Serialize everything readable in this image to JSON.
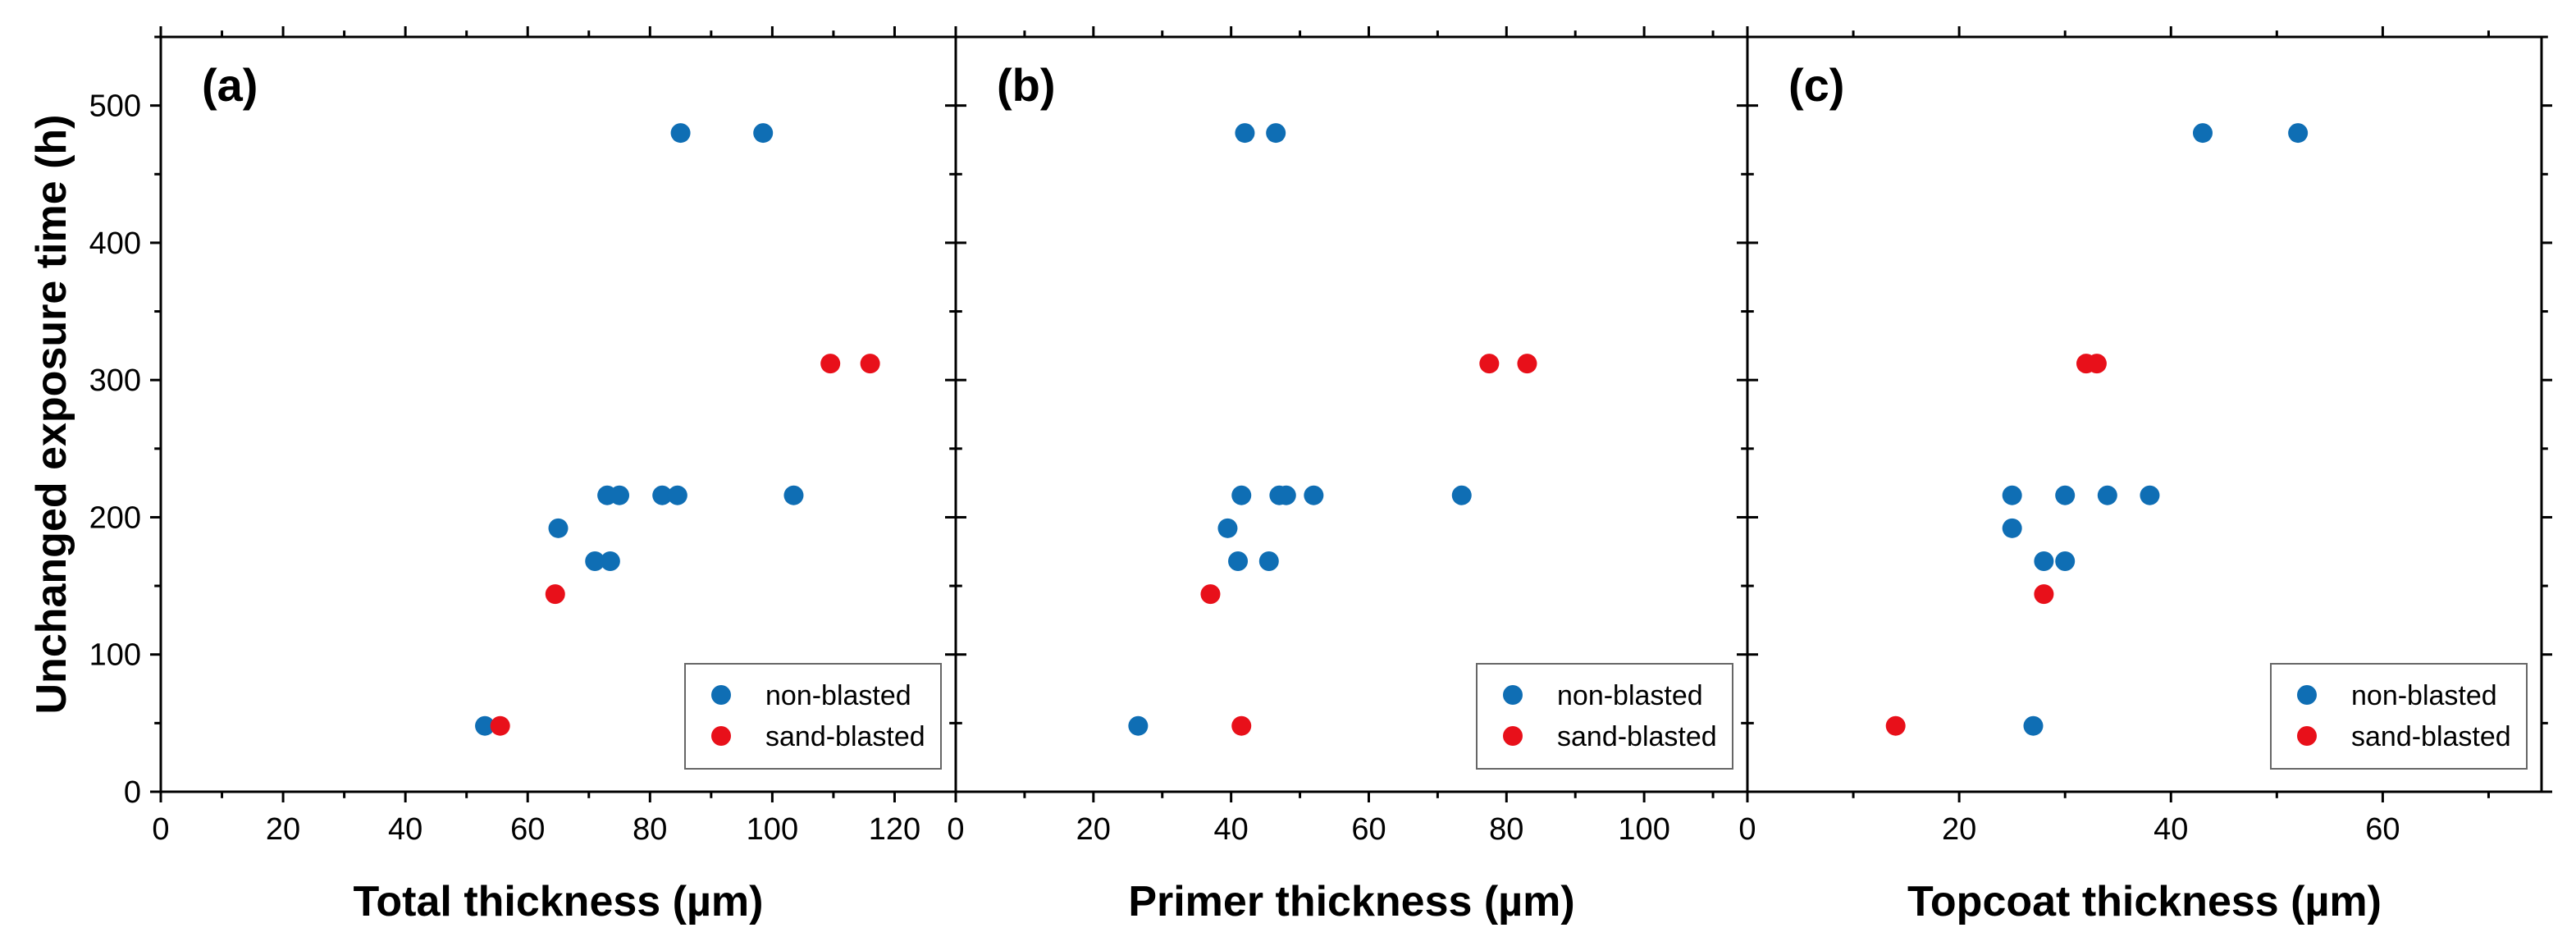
{
  "chart_data": [
    {
      "type": "scatter",
      "panel_label": "(a)",
      "xlabel": "Total thickness (µm)",
      "ylabel": "Unchanged exposure time (h)",
      "xlim": [
        0,
        130
      ],
      "ylim": [
        0,
        550
      ],
      "xticks": [
        0,
        20,
        40,
        60,
        80,
        100,
        120
      ],
      "yticks": [
        0,
        100,
        200,
        300,
        400,
        500
      ],
      "legend_position": "bottom-right",
      "series": [
        {
          "name": "non-blasted",
          "color": "#0f6eb4",
          "points": [
            [
              53,
              48
            ],
            [
              65,
              192
            ],
            [
              71,
              168
            ],
            [
              73.5,
              168
            ],
            [
              73,
              216
            ],
            [
              75,
              216
            ],
            [
              82,
              216
            ],
            [
              84.5,
              216
            ],
            [
              103.5,
              216
            ],
            [
              85,
              480
            ],
            [
              98.5,
              480
            ]
          ]
        },
        {
          "name": "sand-blasted",
          "color": "#e8101a",
          "points": [
            [
              55.5,
              48
            ],
            [
              64.5,
              144
            ],
            [
              109.5,
              312
            ],
            [
              116,
              312
            ]
          ]
        }
      ]
    },
    {
      "type": "scatter",
      "panel_label": "(b)",
      "xlabel": "Primer thickness (µm)",
      "xlim": [
        0,
        115
      ],
      "ylim": [
        0,
        550
      ],
      "xticks": [
        0,
        20,
        40,
        60,
        80,
        100
      ],
      "yticks": [
        0,
        100,
        200,
        300,
        400,
        500
      ],
      "legend_position": "bottom-right",
      "series": [
        {
          "name": "non-blasted",
          "color": "#0f6eb4",
          "points": [
            [
              26.5,
              48
            ],
            [
              39.5,
              192
            ],
            [
              41,
              168
            ],
            [
              45.5,
              168
            ],
            [
              41.5,
              216
            ],
            [
              47,
              216
            ],
            [
              48,
              216
            ],
            [
              52,
              216
            ],
            [
              73.5,
              216
            ],
            [
              42,
              480
            ],
            [
              46.5,
              480
            ]
          ]
        },
        {
          "name": "sand-blasted",
          "color": "#e8101a",
          "points": [
            [
              41.5,
              48
            ],
            [
              37,
              144
            ],
            [
              77.5,
              312
            ],
            [
              83,
              312
            ]
          ]
        }
      ]
    },
    {
      "type": "scatter",
      "panel_label": "(c)",
      "xlabel": "Topcoat thickness (µm)",
      "xlim": [
        0,
        75
      ],
      "ylim": [
        0,
        550
      ],
      "xticks": [
        0,
        20,
        40,
        60
      ],
      "yticks": [
        0,
        100,
        200,
        300,
        400,
        500
      ],
      "legend_position": "bottom-right",
      "series": [
        {
          "name": "non-blasted",
          "color": "#0f6eb4",
          "points": [
            [
              27,
              48
            ],
            [
              25,
              192
            ],
            [
              28,
              168
            ],
            [
              30,
              168
            ],
            [
              25,
              216
            ],
            [
              30,
              216
            ],
            [
              34,
              216
            ],
            [
              38,
              216
            ],
            [
              43,
              480
            ],
            [
              52,
              480
            ]
          ]
        },
        {
          "name": "sand-blasted",
          "color": "#e8101a",
          "points": [
            [
              14,
              48
            ],
            [
              28,
              144
            ],
            [
              32,
              312
            ],
            [
              33,
              312
            ]
          ]
        }
      ]
    }
  ]
}
